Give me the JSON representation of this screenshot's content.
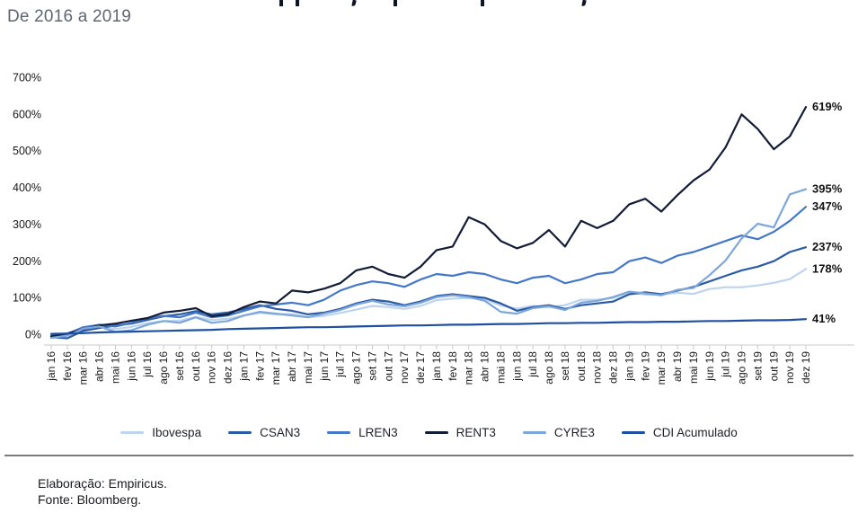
{
  "header": {
    "subtitle": "De 2016 a 2019"
  },
  "footer": {
    "elaboracao": "Elaboração: Empiricus.",
    "fonte": "Fonte: Bloomberg."
  },
  "chart_data": {
    "type": "line",
    "title_visible": false,
    "grid": false,
    "legend_position": "bottom",
    "ylim": [
      -30,
      700
    ],
    "y_ticks": [
      {
        "v": 0,
        "label": "0%"
      },
      {
        "v": 100,
        "label": "100%"
      },
      {
        "v": 200,
        "label": "200%"
      },
      {
        "v": 300,
        "label": "300%"
      },
      {
        "v": 400,
        "label": "400%"
      },
      {
        "v": 500,
        "label": "500%"
      },
      {
        "v": 600,
        "label": "600%"
      },
      {
        "v": 700,
        "label": "700%"
      }
    ],
    "x_labels": [
      "jan 16",
      "fev 16",
      "mar 16",
      "abr 16",
      "mai 16",
      "jun 16",
      "jul 16",
      "ago 16",
      "set 16",
      "out 16",
      "nov 16",
      "dez 16",
      "jan 17",
      "fev 17",
      "mar 17",
      "abr 17",
      "mai 17",
      "jun 17",
      "jul 17",
      "ago 17",
      "set 17",
      "out 17",
      "nov 17",
      "dez 17",
      "jan 18",
      "fev 18",
      "mar 18",
      "abr 18",
      "mai 18",
      "jun 18",
      "jul 18",
      "ago 18",
      "set 18",
      "out 18",
      "nov 18",
      "dez 18",
      "jan 19",
      "fev 19",
      "mar 19",
      "abr 19",
      "mai 19",
      "jun 19",
      "jul 19",
      "ago 19",
      "set 19",
      "out 19",
      "nov 19",
      "dez 19"
    ],
    "series": [
      {
        "name": "Ibovespa",
        "color": "#bdd4ee",
        "end_label": "178%",
        "values": [
          -7,
          -3,
          14,
          20,
          14,
          20,
          30,
          36,
          37,
          47,
          39,
          42,
          51,
          58,
          54,
          55,
          47,
          50,
          58,
          67,
          77,
          74,
          69,
          77,
          93,
          97,
          99,
          96,
          78,
          70,
          77,
          74,
          79,
          94,
          94,
          99,
          113,
          108,
          108,
          113,
          110,
          123,
          128,
          128,
          133,
          140,
          150,
          178
        ]
      },
      {
        "name": "CSAN3",
        "color": "#2a5ba5",
        "end_label": "237%",
        "values": [
          -8,
          -11,
          9,
          17,
          24,
          29,
          39,
          49,
          54,
          63,
          54,
          59,
          69,
          79,
          69,
          64,
          54,
          59,
          69,
          84,
          94,
          89,
          79,
          89,
          104,
          109,
          104,
          99,
          84,
          64,
          74,
          79,
          69,
          79,
          84,
          89,
          109,
          114,
          109,
          119,
          129,
          144,
          159,
          174,
          184,
          199,
          224,
          237
        ]
      },
      {
        "name": "LREN3",
        "color": "#4377c8",
        "end_label": "347%",
        "values": [
          -4,
          1,
          19,
          26,
          21,
          31,
          44,
          50,
          46,
          59,
          46,
          51,
          64,
          76,
          81,
          86,
          79,
          94,
          119,
          134,
          144,
          139,
          129,
          149,
          164,
          159,
          169,
          164,
          149,
          139,
          154,
          159,
          139,
          149,
          164,
          169,
          199,
          209,
          194,
          214,
          224,
          239,
          254,
          269,
          259,
          279,
          309,
          347
        ]
      },
      {
        "name": "RENT3",
        "color": "#131c36",
        "end_label": "619%",
        "values": [
          -6,
          2,
          14,
          24,
          29,
          37,
          44,
          59,
          64,
          71,
          49,
          54,
          74,
          89,
          84,
          119,
          114,
          124,
          139,
          174,
          184,
          164,
          154,
          184,
          229,
          239,
          319,
          299,
          254,
          234,
          249,
          284,
          239,
          309,
          289,
          309,
          354,
          369,
          334,
          379,
          419,
          449,
          509,
          599,
          559,
          504,
          539,
          619
        ]
      },
      {
        "name": "CYRE3",
        "color": "#7da6db",
        "end_label": "395%",
        "values": [
          -10,
          -4,
          15,
          21,
          6,
          11,
          26,
          36,
          31,
          46,
          31,
          36,
          51,
          61,
          56,
          51,
          46,
          56,
          66,
          81,
          91,
          81,
          76,
          86,
          101,
          106,
          101,
          91,
          61,
          56,
          71,
          76,
          66,
          86,
          91,
          101,
          116,
          111,
          106,
          121,
          126,
          161,
          201,
          261,
          301,
          291,
          381,
          395
        ]
      },
      {
        "name": "CDI Acumulado",
        "color": "#1e4fa1",
        "end_label": "41%",
        "values": [
          1,
          2,
          3,
          5,
          6,
          7,
          8,
          9,
          10,
          11,
          12,
          14,
          15,
          16,
          17,
          18,
          19,
          19,
          20,
          21,
          22,
          23,
          24,
          24,
          25,
          26,
          26,
          27,
          28,
          28,
          29,
          30,
          30,
          31,
          31,
          32,
          33,
          33,
          34,
          34,
          35,
          36,
          36,
          37,
          38,
          38,
          39,
          41
        ]
      }
    ]
  }
}
